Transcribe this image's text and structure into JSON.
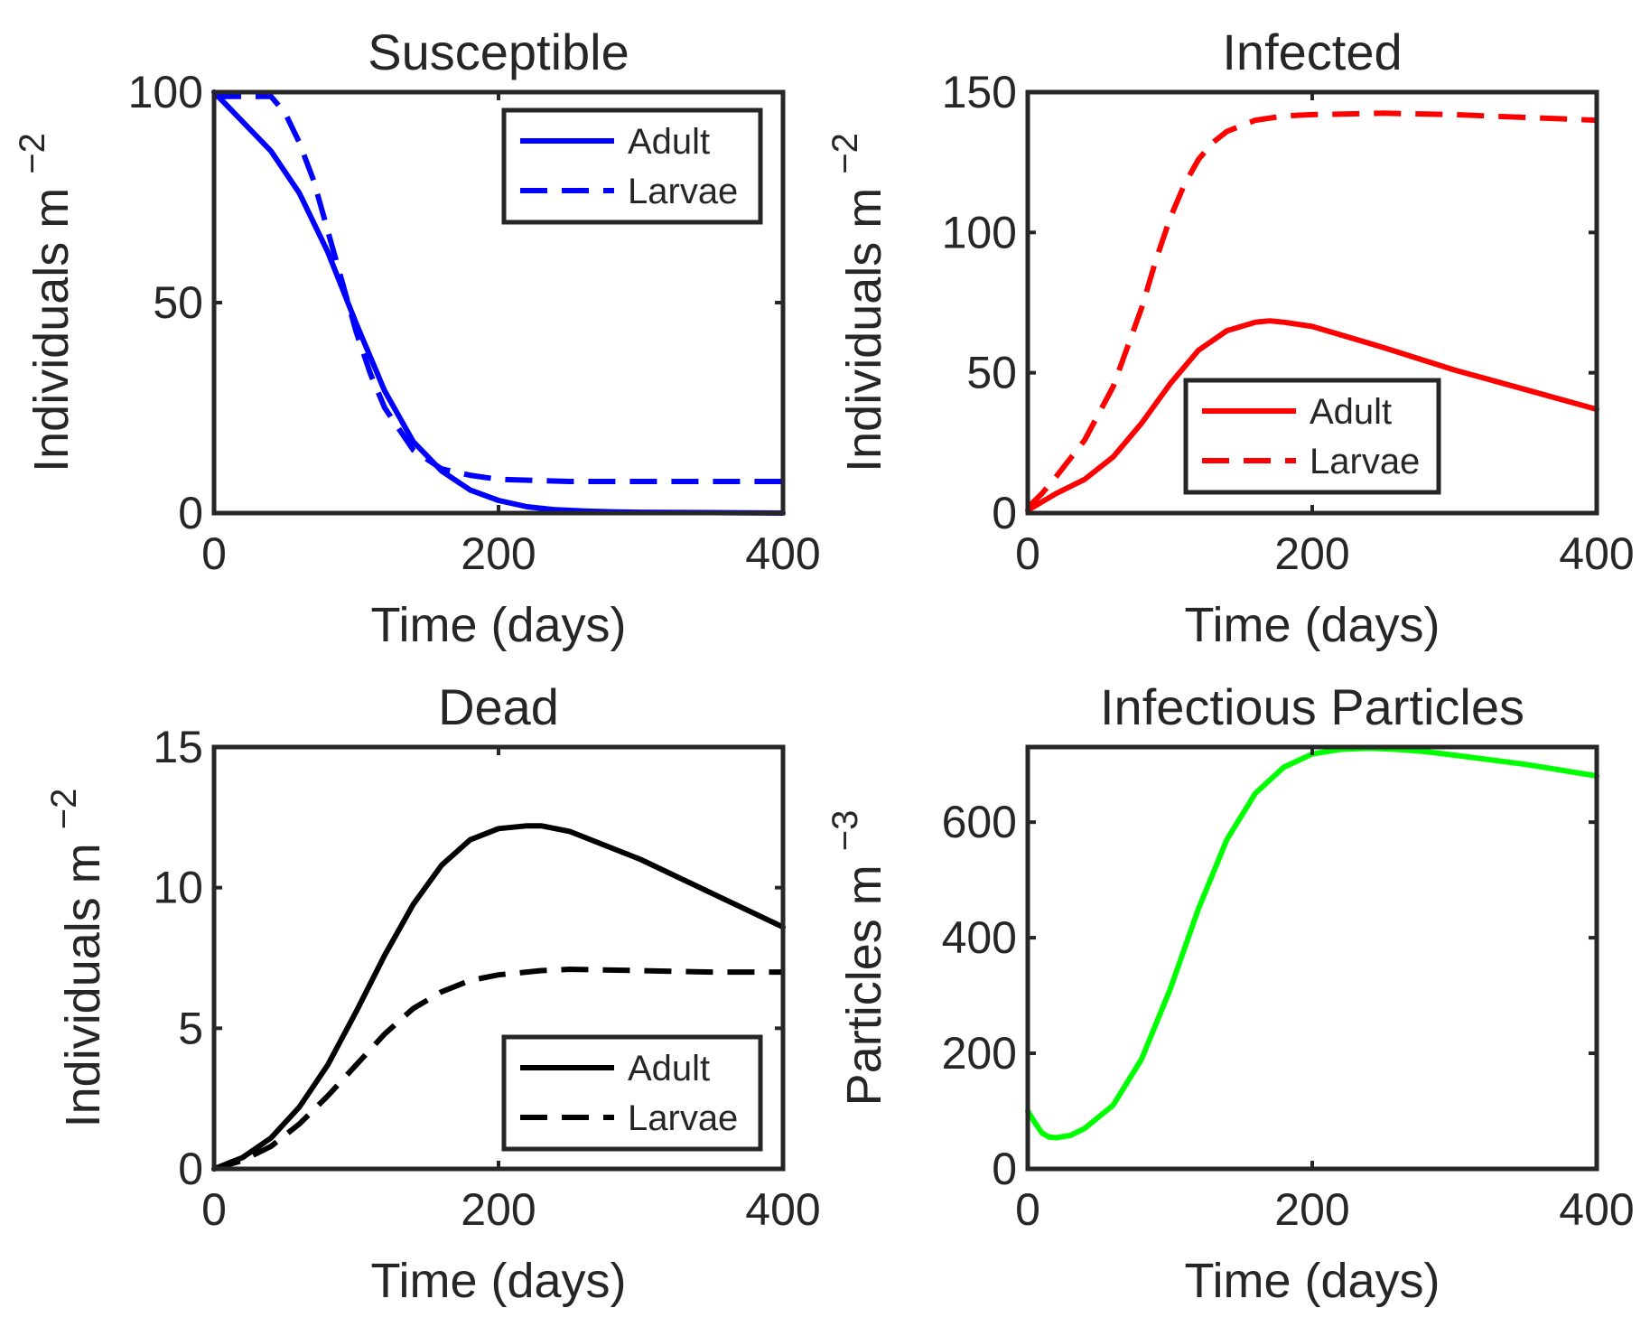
{
  "figure": {
    "background": "#ffffff",
    "axis_color": "#262626"
  },
  "chart_data": [
    {
      "type": "line",
      "title": "Susceptible",
      "xlabel": "Time (days)",
      "ylabel": {
        "base": "Individuals m",
        "exponent": "−2"
      },
      "xlim": [
        0,
        400
      ],
      "ylim": [
        0,
        100
      ],
      "xticks": [
        0,
        200,
        400
      ],
      "yticks": [
        0,
        50,
        100
      ],
      "legend": {
        "position": "top-right",
        "entries": [
          "Adult",
          "Larvae"
        ]
      },
      "series": [
        {
          "name": "Adult",
          "color": "#0000ff",
          "dash": "solid",
          "x": [
            0,
            20,
            40,
            60,
            80,
            100,
            120,
            140,
            160,
            180,
            200,
            220,
            240,
            260,
            280,
            300,
            350,
            400
          ],
          "y": [
            100,
            93,
            86,
            76,
            62,
            45,
            29,
            17,
            10,
            5.5,
            3,
            1.5,
            0.8,
            0.5,
            0.3,
            0.2,
            0.1,
            0
          ]
        },
        {
          "name": "Larvae",
          "color": "#0000ff",
          "dash": "dashed",
          "x": [
            0,
            20,
            40,
            50,
            60,
            70,
            80,
            90,
            100,
            110,
            120,
            140,
            160,
            180,
            200,
            250,
            300,
            350,
            400
          ],
          "y": [
            99,
            99,
            99,
            95,
            88,
            79,
            67,
            55,
            43,
            33,
            25,
            15,
            10.5,
            9,
            8,
            7.5,
            7.5,
            7.5,
            7.5
          ]
        }
      ]
    },
    {
      "type": "line",
      "title": "Infected",
      "xlabel": "Time (days)",
      "ylabel": {
        "base": "Individuals m",
        "exponent": "−2"
      },
      "xlim": [
        0,
        400
      ],
      "ylim": [
        0,
        150
      ],
      "xticks": [
        0,
        200,
        400
      ],
      "yticks": [
        0,
        50,
        100,
        150
      ],
      "legend": {
        "position": "bottom-center",
        "entries": [
          "Adult",
          "Larvae"
        ]
      },
      "series": [
        {
          "name": "Adult",
          "color": "#ff0000",
          "dash": "solid",
          "x": [
            0,
            10,
            20,
            40,
            60,
            80,
            100,
            120,
            140,
            160,
            170,
            180,
            200,
            250,
            300,
            350,
            400
          ],
          "y": [
            1,
            4,
            7,
            12,
            20,
            32,
            46,
            58,
            65,
            68,
            68.5,
            68,
            66.5,
            59,
            51,
            44,
            37
          ]
        },
        {
          "name": "Larvae",
          "color": "#ff0000",
          "dash": "dashed",
          "x": [
            0,
            10,
            20,
            40,
            60,
            80,
            90,
            100,
            110,
            120,
            130,
            140,
            160,
            180,
            200,
            250,
            300,
            350,
            400
          ],
          "y": [
            2,
            7,
            13,
            26,
            45,
            73,
            90,
            105,
            117,
            126,
            132,
            136,
            140,
            141.5,
            142,
            142.5,
            142,
            141,
            140
          ]
        }
      ]
    },
    {
      "type": "line",
      "title": "Dead",
      "xlabel": "Time (days)",
      "ylabel": {
        "base": "Individuals m",
        "exponent": "−2"
      },
      "xlim": [
        0,
        400
      ],
      "ylim": [
        0,
        15
      ],
      "xticks": [
        0,
        200,
        400
      ],
      "yticks": [
        0,
        5,
        10,
        15
      ],
      "legend": {
        "position": "bottom-right",
        "entries": [
          "Adult",
          "Larvae"
        ]
      },
      "series": [
        {
          "name": "Adult",
          "color": "#000000",
          "dash": "solid",
          "x": [
            0,
            20,
            40,
            60,
            80,
            100,
            120,
            140,
            160,
            180,
            200,
            220,
            230,
            250,
            300,
            350,
            400
          ],
          "y": [
            0,
            0.4,
            1.1,
            2.2,
            3.7,
            5.6,
            7.6,
            9.4,
            10.8,
            11.7,
            12.1,
            12.2,
            12.2,
            12,
            11,
            9.8,
            8.6
          ]
        },
        {
          "name": "Larvae",
          "color": "#000000",
          "dash": "dashed",
          "x": [
            0,
            20,
            40,
            60,
            80,
            100,
            120,
            140,
            160,
            180,
            200,
            230,
            250,
            300,
            350,
            400
          ],
          "y": [
            0,
            0.3,
            0.8,
            1.6,
            2.6,
            3.7,
            4.8,
            5.7,
            6.3,
            6.7,
            6.9,
            7.05,
            7.1,
            7.05,
            7.0,
            7.0
          ]
        }
      ]
    },
    {
      "type": "line",
      "title": "Infectious Particles",
      "xlabel": "Time (days)",
      "ylabel": {
        "base": "Particles m",
        "exponent": "−3"
      },
      "xlim": [
        0,
        400
      ],
      "ylim": [
        0,
        730
      ],
      "xticks": [
        0,
        200,
        400
      ],
      "yticks": [
        0,
        200,
        400,
        600
      ],
      "series": [
        {
          "name": "Particles",
          "color": "#00ff00",
          "dash": "solid",
          "x": [
            0,
            5,
            10,
            15,
            20,
            30,
            40,
            60,
            80,
            100,
            120,
            140,
            160,
            180,
            200,
            220,
            240,
            260,
            280,
            300,
            350,
            400
          ],
          "y": [
            100,
            80,
            62,
            55,
            54,
            58,
            70,
            110,
            190,
            310,
            450,
            570,
            650,
            695,
            718,
            726,
            728,
            726,
            722,
            716,
            700,
            680
          ]
        }
      ]
    }
  ]
}
